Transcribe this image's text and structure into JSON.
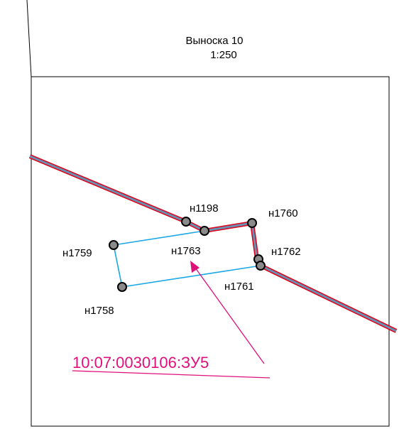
{
  "header": {
    "title": "Выноска 10",
    "scale": "1:250"
  },
  "points": [
    {
      "label": "н1198"
    },
    {
      "label": "н1760"
    },
    {
      "label": "н1763"
    },
    {
      "label": "н1759"
    },
    {
      "label": "н1762"
    },
    {
      "label": "н1761"
    },
    {
      "label": "н1758"
    }
  ],
  "parcel": {
    "label": "10:07:0030106:ЗУ5"
  }
}
